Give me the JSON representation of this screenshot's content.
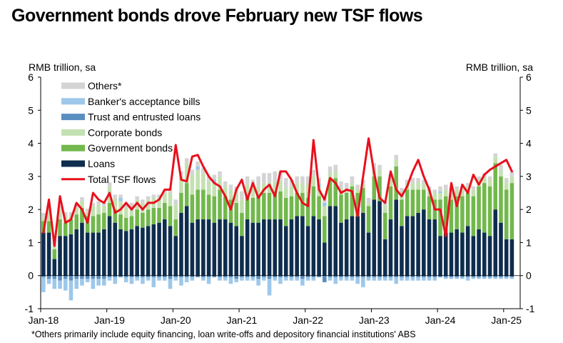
{
  "title": "Government bonds drove February new TSF flows",
  "y_unit_left": "RMB trillion, sa",
  "y_unit_right": "RMB trillion, sa",
  "footnote": "*Others primarily include equity financing, loan write-offs and depository financial institutions' ABS",
  "colors": {
    "others": "#d4d4d4",
    "bankers_acceptance_bills": "#9dc8ea",
    "trust_entrusted_loans": "#5b8ec0",
    "corporate_bonds": "#c4e1b2",
    "government_bonds": "#72b84c",
    "loans": "#0e2d4e",
    "total": "#e8101c"
  },
  "chart_data": {
    "type": "bar",
    "stacked": true,
    "x_start": "2018-01",
    "xticks": [
      "Jan-18",
      "Jan-19",
      "Jan-20",
      "Jan-21",
      "Jan-22",
      "Jan-23",
      "Jan-24",
      "Jan-25"
    ],
    "yticks": [
      "-1",
      "0",
      "1",
      "2",
      "3",
      "4",
      "5",
      "6"
    ],
    "ylim": [
      -1,
      6
    ],
    "legend_position": "top-left",
    "series": [
      {
        "name": "Others*",
        "key": "others",
        "values": [
          0.15,
          0.15,
          0.15,
          0.12,
          0.12,
          0.12,
          0.12,
          0.12,
          0.12,
          0.1,
          0.1,
          0.1,
          0.12,
          0.1,
          0.1,
          0.1,
          0.1,
          0.1,
          0.1,
          0.1,
          0.1,
          0.1,
          0.1,
          0.15,
          0.15,
          0.15,
          0.15,
          0.15,
          0.15,
          0.15,
          0.15,
          0.15,
          0.15,
          0.15,
          0.15,
          0.2,
          0.25,
          0.25,
          0.25,
          0.3,
          0.3,
          0.3,
          0.3,
          0.3,
          0.3,
          0.2,
          0.2,
          0.2,
          0.25,
          0.2,
          0.2,
          0.2,
          0.2,
          0.2,
          0.2,
          0.2,
          0.2,
          0.15,
          0.15,
          0.15,
          0.2,
          0.15,
          0.15,
          0.15,
          0.15,
          0.15,
          0.1,
          0.15,
          0.15,
          0.1,
          0.1,
          0.1,
          0.15,
          0.15,
          0.15,
          0.1,
          0.1,
          0.1,
          0.1,
          0.1,
          0.1,
          0.1,
          0.1,
          0.15,
          0.15,
          0.15
        ]
      },
      {
        "name": "Banker's acceptance bills",
        "key": "bills",
        "values": [
          -0.45,
          -0.15,
          -0.3,
          -0.25,
          -0.35,
          -0.6,
          -0.3,
          -0.2,
          -0.1,
          -0.3,
          -0.2,
          -0.2,
          -0.1,
          -0.2,
          0.1,
          -0.15,
          -0.2,
          -0.1,
          -0.2,
          -0.1,
          -0.3,
          -0.1,
          -0.1,
          -0.3,
          -0.1,
          -0.25,
          -0.15,
          -0.1,
          0.1,
          -0.1,
          -0.2,
          0.1,
          -0.1,
          -0.1,
          -0.2,
          -0.1,
          -0.1,
          -0.1,
          -0.1,
          -0.2,
          -0.1,
          -0.5,
          -0.1,
          -0.2,
          -0.1,
          -0.1,
          -0.1,
          -0.2,
          -0.1,
          -0.1,
          0.05,
          0.1,
          -0.1,
          -0.2,
          -0.1,
          -0.1,
          -0.1,
          -0.2,
          -0.3,
          -0.1,
          -0.1,
          -0.1,
          -0.1,
          -0.1,
          -0.2,
          -0.1,
          -0.1,
          -0.1,
          -0.1,
          -0.1,
          -0.1,
          -0.1,
          0.05,
          -0.05,
          -0.05,
          -0.05,
          -0.05,
          -0.1,
          -0.05,
          -0.05,
          -0.05,
          -0.05,
          -0.05,
          -0.05,
          -0.05,
          -0.05
        ]
      },
      {
        "name": "Trust and entrusted loans",
        "key": "trust",
        "values": [
          -0.05,
          -0.1,
          -0.1,
          -0.15,
          -0.1,
          -0.15,
          -0.1,
          -0.1,
          -0.1,
          -0.1,
          -0.1,
          -0.1,
          -0.05,
          -0.05,
          -0.05,
          -0.05,
          -0.05,
          -0.05,
          -0.05,
          -0.05,
          -0.05,
          -0.05,
          -0.05,
          -0.1,
          -0.05,
          -0.05,
          -0.05,
          -0.05,
          -0.05,
          -0.05,
          -0.05,
          -0.05,
          -0.05,
          -0.05,
          -0.05,
          -0.1,
          -0.05,
          -0.05,
          -0.05,
          -0.1,
          -0.05,
          -0.1,
          -0.05,
          -0.05,
          -0.05,
          -0.05,
          -0.05,
          -0.1,
          -0.05,
          -0.05,
          -0.05,
          -0.2,
          -0.05,
          -0.05,
          -0.05,
          -0.05,
          -0.05,
          -0.05,
          -0.05,
          -0.05,
          -0.05,
          -0.05,
          -0.05,
          -0.05,
          -0.05,
          -0.05,
          -0.05,
          -0.05,
          -0.05,
          -0.05,
          -0.05,
          -0.05,
          -0.05,
          -0.05,
          -0.05,
          -0.05,
          -0.05,
          -0.05,
          -0.05,
          -0.05,
          -0.05,
          -0.05,
          -0.05,
          -0.05,
          -0.05,
          -0.05
        ]
      },
      {
        "name": "Corporate bonds",
        "key": "corp",
        "values": [
          0.1,
          0.3,
          0.1,
          0.3,
          0.2,
          0.1,
          0.2,
          0.2,
          0.1,
          0.3,
          0.3,
          0.2,
          0.5,
          0.35,
          0.4,
          0.3,
          0.3,
          0.3,
          0.3,
          0.3,
          0.3,
          0.3,
          0.3,
          0.4,
          0.45,
          0.5,
          0.6,
          0.6,
          0.6,
          0.5,
          0.4,
          0.4,
          0.4,
          0.3,
          0.3,
          0.3,
          0.4,
          0.3,
          0.3,
          0.3,
          0.3,
          0.3,
          0.3,
          0.3,
          0.3,
          0.3,
          0.3,
          0.3,
          0.4,
          0.3,
          0.3,
          0.3,
          0.2,
          0.2,
          0.2,
          0.1,
          0.1,
          0.1,
          0.1,
          0.1,
          0.2,
          0.2,
          0.2,
          0.2,
          0.2,
          0.2,
          0.2,
          0.2,
          0.2,
          0.2,
          0.2,
          0.2,
          0.2,
          0.2,
          0.2,
          0.2,
          0.2,
          0.2,
          0.2,
          0.2,
          0.2,
          0.2,
          0.2,
          0.2,
          0.2,
          0.2
        ]
      },
      {
        "name": "Government bonds",
        "key": "gov",
        "values": [
          0.35,
          0.35,
          0.3,
          0.5,
          0.4,
          0.45,
          0.45,
          0.45,
          0.5,
          0.5,
          0.55,
          0.5,
          0.4,
          0.4,
          0.45,
          0.4,
          0.4,
          0.5,
          0.45,
          0.5,
          0.5,
          0.45,
          0.5,
          0.6,
          0.5,
          0.6,
          0.7,
          0.85,
          0.9,
          0.9,
          0.75,
          0.8,
          0.9,
          0.7,
          0.7,
          0.7,
          0.7,
          0.75,
          0.75,
          0.8,
          0.8,
          0.8,
          0.85,
          0.85,
          0.85,
          0.7,
          0.7,
          0.7,
          0.85,
          0.9,
          0.7,
          0.8,
          0.8,
          0.85,
          0.85,
          0.8,
          0.9,
          0.7,
          0.75,
          0.8,
          0.7,
          0.75,
          0.8,
          1.0,
          1.0,
          0.8,
          0.8,
          0.8,
          0.7,
          0.6,
          0.7,
          0.6,
          1.1,
          1.1,
          1.0,
          1.0,
          1.1,
          1.0,
          1.2,
          1.3,
          1.5,
          1.5,
          1.4,
          1.4,
          1.5,
          1.7
        ]
      },
      {
        "name": "Loans",
        "key": "loans",
        "values": [
          1.3,
          1.3,
          0.5,
          1.2,
          1.2,
          1.25,
          1.4,
          1.6,
          1.3,
          1.3,
          1.3,
          1.4,
          1.8,
          1.6,
          1.4,
          1.35,
          1.4,
          1.5,
          1.45,
          1.5,
          1.55,
          1.6,
          1.7,
          1.5,
          1.2,
          1.9,
          2.1,
          1.6,
          1.7,
          1.7,
          1.7,
          1.6,
          1.7,
          1.7,
          1.6,
          1.5,
          1.2,
          1.7,
          1.6,
          1.6,
          1.7,
          1.7,
          1.7,
          1.7,
          1.5,
          1.7,
          1.8,
          1.8,
          1.5,
          1.8,
          1.7,
          1.0,
          2.1,
          2.1,
          1.6,
          1.7,
          1.8,
          1.8,
          1.9,
          1.3,
          2.3,
          2.25,
          1.1,
          1.7,
          2.3,
          1.5,
          1.8,
          1.8,
          1.9,
          2.0,
          1.7,
          1.7,
          1.2,
          1.3,
          1.3,
          1.4,
          1.3,
          1.5,
          1.2,
          1.4,
          1.3,
          1.2,
          2.0,
          1.6,
          1.1,
          1.1
        ]
      },
      {
        "name": "Total TSF flows",
        "key": "total",
        "kind": "line",
        "values": [
          1.3,
          2.3,
          0.9,
          2.4,
          1.6,
          1.7,
          2.2,
          2.0,
          1.6,
          2.5,
          2.3,
          2.2,
          2.5,
          1.9,
          2.0,
          2.2,
          2.0,
          2.2,
          2.0,
          2.2,
          2.2,
          2.3,
          2.6,
          2.6,
          3.95,
          2.9,
          2.85,
          3.6,
          3.65,
          3.3,
          3.0,
          2.8,
          2.7,
          2.4,
          2.0,
          2.6,
          2.9,
          2.3,
          2.8,
          2.35,
          2.6,
          2.75,
          2.4,
          3.15,
          3.15,
          2.9,
          2.5,
          2.2,
          2.1,
          4.1,
          2.6,
          2.3,
          2.95,
          2.8,
          2.5,
          2.6,
          2.55,
          1.8,
          3.0,
          4.15,
          3.1,
          2.35,
          2.2,
          3.15,
          2.6,
          2.4,
          2.7,
          3.15,
          3.5,
          3.0,
          2.6,
          2.0,
          2.0,
          1.2,
          2.8,
          2.1,
          2.75,
          2.5,
          3.05,
          2.75,
          3.05,
          3.2,
          3.3,
          3.4,
          3.5,
          3.15
        ]
      }
    ]
  }
}
